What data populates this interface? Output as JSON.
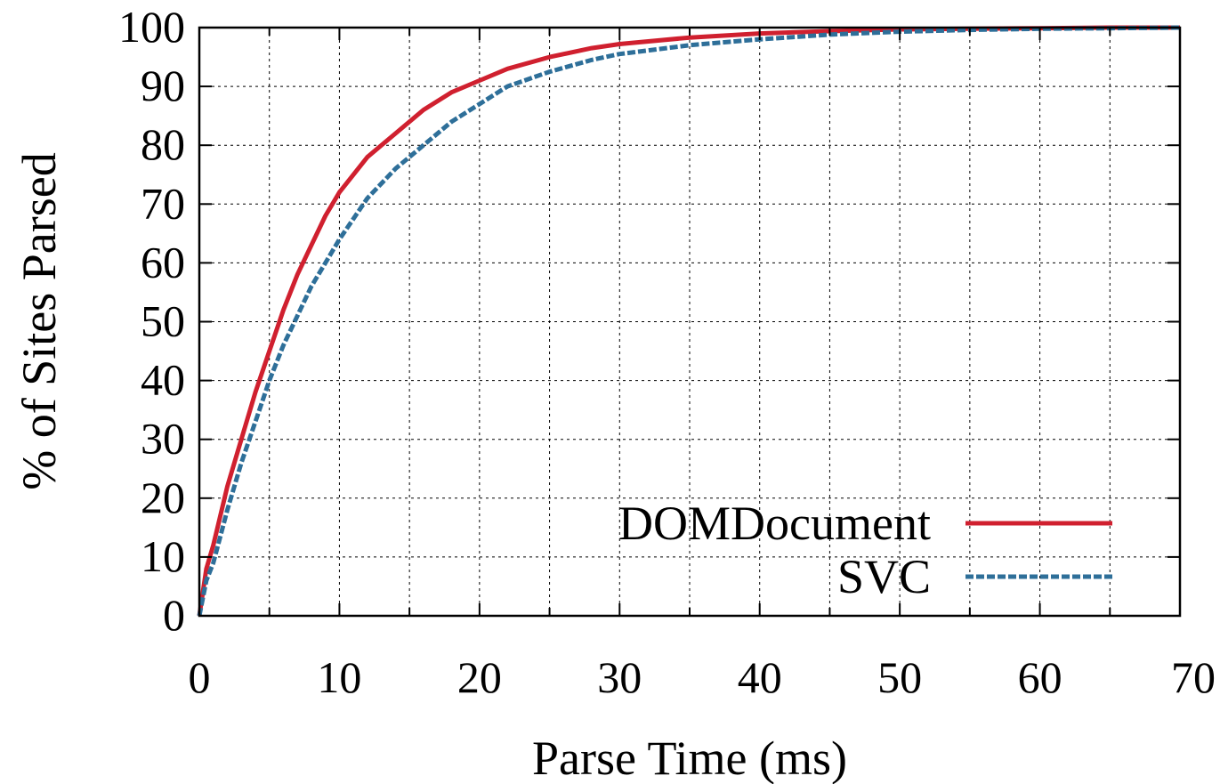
{
  "chart_data": {
    "type": "line",
    "title": "",
    "xlabel": "Parse Time (ms)",
    "ylabel": "% of Sites Parsed",
    "xlim": [
      0,
      70
    ],
    "ylim": [
      0,
      100
    ],
    "xticks": [
      0,
      10,
      20,
      30,
      40,
      50,
      60,
      70
    ],
    "yticks": [
      0,
      10,
      20,
      30,
      40,
      50,
      60,
      70,
      80,
      90,
      100
    ],
    "grid": true,
    "legend_position": "bottom-right",
    "series": [
      {
        "name": "DOMDocument",
        "color": "#d0202f",
        "style": "solid",
        "x": [
          0,
          0.5,
          1,
          2,
          3,
          4,
          5,
          6,
          7,
          8,
          9,
          10,
          12,
          14,
          16,
          18,
          20,
          22,
          25,
          28,
          30,
          35,
          40,
          45,
          50,
          55,
          60,
          65,
          70
        ],
        "y": [
          0,
          8,
          12,
          22,
          30,
          38,
          45,
          52,
          58,
          63,
          68,
          72,
          78,
          82,
          86,
          89,
          91,
          93,
          95,
          96.5,
          97.2,
          98.3,
          99,
          99.4,
          99.7,
          99.8,
          99.9,
          100,
          100
        ]
      },
      {
        "name": "SVC",
        "color": "#2e6f99",
        "style": "dashed",
        "x": [
          0,
          0.5,
          1,
          2,
          3,
          4,
          5,
          6,
          7,
          8,
          9,
          10,
          12,
          14,
          16,
          18,
          20,
          22,
          25,
          28,
          30,
          35,
          40,
          45,
          50,
          55,
          60,
          65,
          70
        ],
        "y": [
          0,
          6,
          9,
          18,
          26,
          33,
          40,
          46,
          51,
          56,
          60,
          64,
          71,
          76,
          80,
          84,
          87,
          90,
          92.5,
          94.5,
          95.5,
          97,
          98,
          98.8,
          99.3,
          99.6,
          99.8,
          99.9,
          100
        ]
      }
    ]
  }
}
